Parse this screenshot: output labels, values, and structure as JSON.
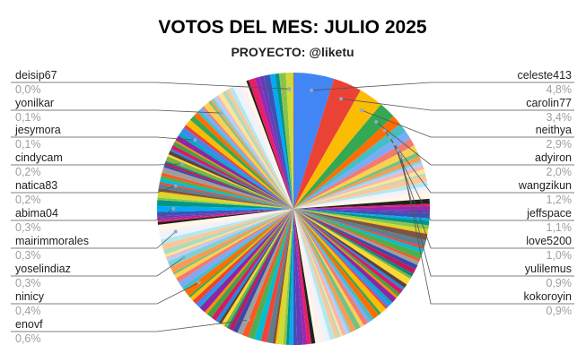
{
  "chart_data": {
    "type": "pie",
    "title": "VOTOS DEL MES: JULIO 2025",
    "subtitle": "PROYECTO: @liketu",
    "left_labels": [
      {
        "name": "deisip67",
        "pct": "0,0%"
      },
      {
        "name": "yonilkar",
        "pct": "0,1%"
      },
      {
        "name": "jesymora",
        "pct": "0,1%"
      },
      {
        "name": "cindycam",
        "pct": "0,2%"
      },
      {
        "name": "natica83",
        "pct": "0,2%"
      },
      {
        "name": "abima04",
        "pct": "0,3%"
      },
      {
        "name": "mairimmorales",
        "pct": "0,3%"
      },
      {
        "name": "yoselindiaz",
        "pct": "0,3%"
      },
      {
        "name": "ninicy",
        "pct": "0,4%"
      },
      {
        "name": "enovf",
        "pct": "0,6%"
      }
    ],
    "right_labels": [
      {
        "name": "celeste413",
        "pct": "4,8%"
      },
      {
        "name": "carolin77",
        "pct": "3,4%"
      },
      {
        "name": "neithya",
        "pct": "2,9%"
      },
      {
        "name": "adyiron",
        "pct": "2,0%"
      },
      {
        "name": "wangzikun",
        "pct": "1,2%"
      },
      {
        "name": "jeffspace",
        "pct": "1,1%"
      },
      {
        "name": "love5200",
        "pct": "1,0%"
      },
      {
        "name": "yulilemus",
        "pct": "0,9%"
      },
      {
        "name": "kokoroyin",
        "pct": "0,9%"
      }
    ],
    "top_slices": [
      4.8,
      3.4,
      2.9,
      2.0,
      1.2,
      1.1,
      1.0,
      0.9,
      0.9
    ],
    "colors": {
      "palette": [
        "#4285F4",
        "#EA4335",
        "#FBBC04",
        "#34A853",
        "#FF6D01",
        "#46BDC6",
        "#7BAAF7",
        "#F07B72",
        "#FCD04F",
        "#71C287",
        "#FF994D",
        "#7ED1D7",
        "#B3CEFB",
        "#F7B4AE",
        "#FDE49B",
        "#AEDCBA",
        "#FFC599",
        "#B5E8EC",
        "#ECF3FE",
        "#FDF0EF",
        "#FFF8E6",
        "#212121",
        "#E91E63",
        "#9C27B0",
        "#673AB7",
        "#3F51B5",
        "#03A9F4",
        "#009688",
        "#8BC34A",
        "#CDDC39",
        "#FFC107",
        "#795548",
        "#607D8B",
        "#F44336",
        "#00BCD4",
        "#4CAF50",
        "#FF5722",
        "#9E9E9E",
        "#3949AB",
        "#C2185B",
        "#00897B",
        "#7CB342",
        "#FDD835",
        "#5D4037",
        "#1E88E5",
        "#D81B60",
        "#43A047",
        "#FB8C00",
        "#8E24AA",
        "#00ACC1"
      ],
      "title": "#000000",
      "label": "#222222",
      "pct": "#9e9e9e",
      "leader": "#555555"
    }
  }
}
